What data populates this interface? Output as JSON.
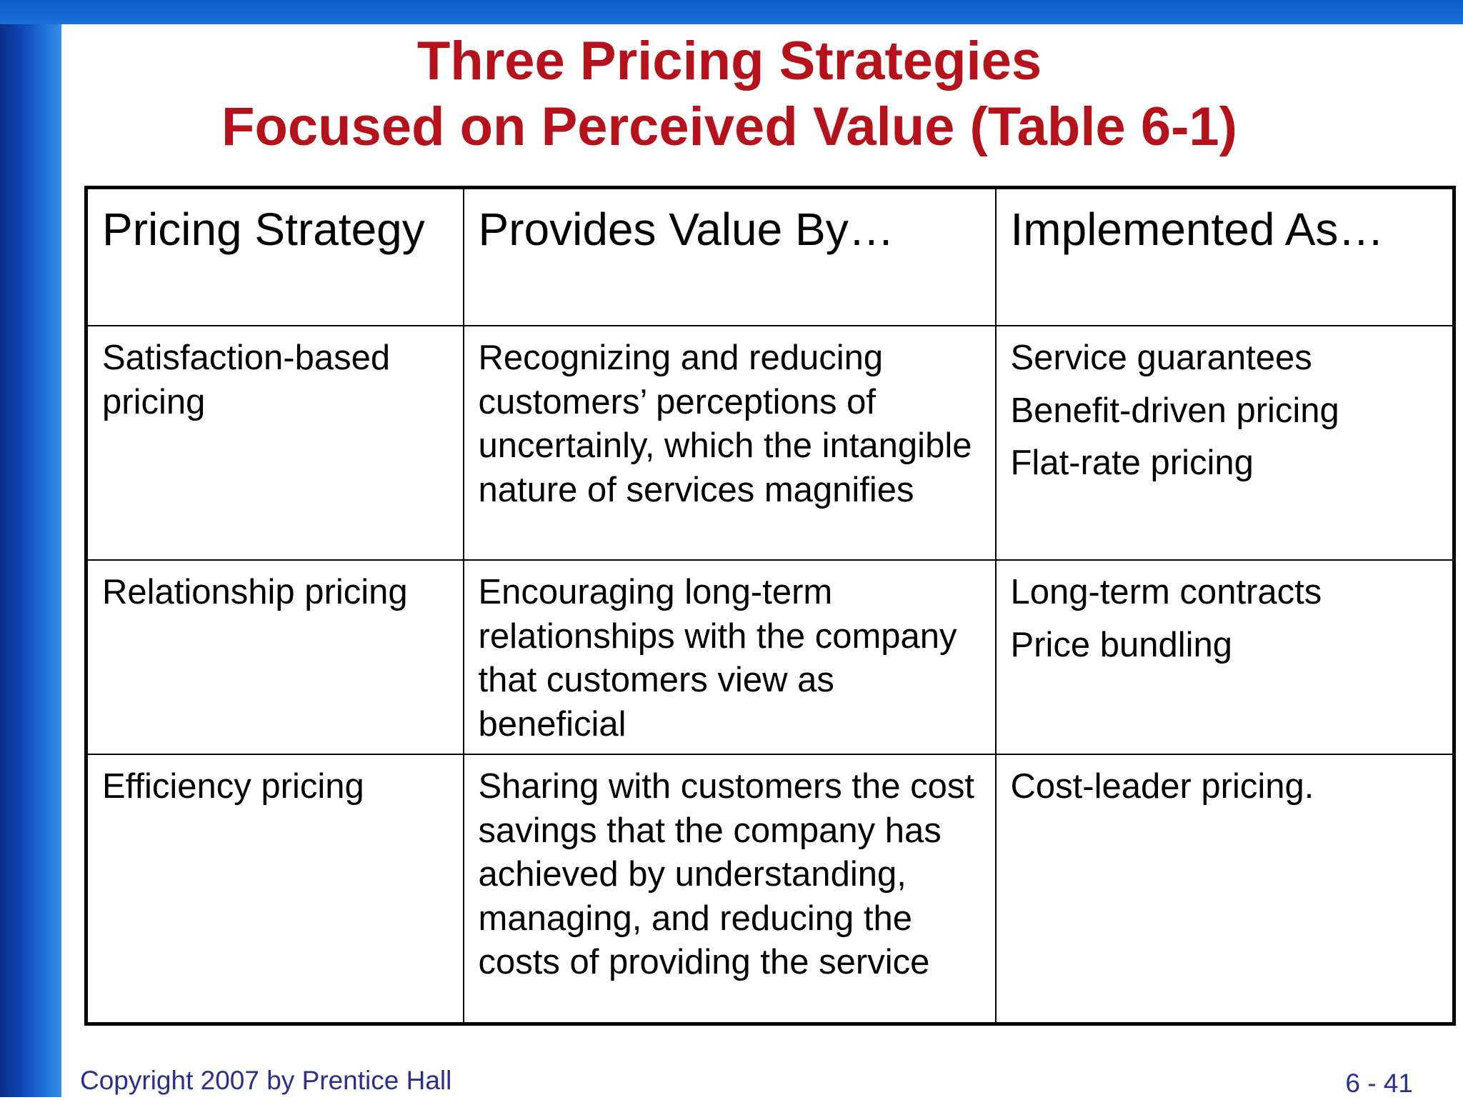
{
  "slide": {
    "title_line1": "Three Pricing Strategies",
    "title_line2": "Focused on Perceived Value (Table 6-1)",
    "footer_left": "Copyright 2007 by Prentice Hall",
    "footer_right": "6 - 41"
  },
  "colors": {
    "title": "#b5121b",
    "footer": "#2b2f8f",
    "side_bar": "#0f47b5"
  },
  "table": {
    "headers": [
      "Pricing Strategy",
      "Provides Value By…",
      "Implemented As…"
    ],
    "rows": [
      {
        "strategy": "Satisfaction-based pricing",
        "value_by": "Recognizing and reducing customers’ perceptions of uncertainly, which the intangible nature of services magnifies",
        "implemented_as": [
          "Service guarantees",
          "Benefit-driven pricing",
          "Flat-rate pricing"
        ]
      },
      {
        "strategy": "Relationship pricing",
        "value_by": "Encouraging long-term relationships with the company that customers view as beneficial",
        "implemented_as": [
          "Long-term contracts",
          "Price bundling"
        ]
      },
      {
        "strategy": "Efficiency pricing",
        "value_by": "Sharing with customers the cost savings that the company has achieved by understanding, managing, and reducing the costs of providing the service",
        "implemented_as": [
          "Cost-leader pricing."
        ]
      }
    ]
  }
}
